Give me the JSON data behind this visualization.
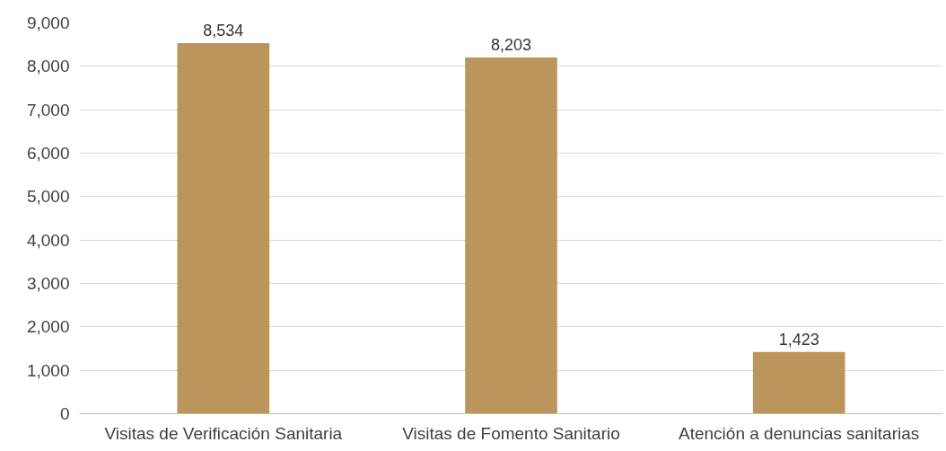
{
  "chart_data": {
    "type": "bar",
    "categories": [
      "Visitas de Verificación Sanitaria",
      "Visitas de Fomento Sanitario",
      "Atención a denuncias sanitarias"
    ],
    "values": [
      8534,
      8203,
      1423
    ],
    "value_labels": [
      "8,534",
      "8,203",
      "1,423"
    ],
    "color": "#bb955b",
    "ylim": [
      0,
      9000
    ],
    "yticks": [
      {
        "value": 0,
        "label": "0"
      },
      {
        "value": 1000,
        "label": "1,000"
      },
      {
        "value": 2000,
        "label": "2,000"
      },
      {
        "value": 3000,
        "label": "3,000"
      },
      {
        "value": 4000,
        "label": "4,000"
      },
      {
        "value": 5000,
        "label": "5,000"
      },
      {
        "value": 6000,
        "label": "6,000"
      },
      {
        "value": 7000,
        "label": "7,000"
      },
      {
        "value": 8000,
        "label": "8,000"
      },
      {
        "value": 9000,
        "label": "9,000"
      }
    ],
    "grid": "y"
  }
}
